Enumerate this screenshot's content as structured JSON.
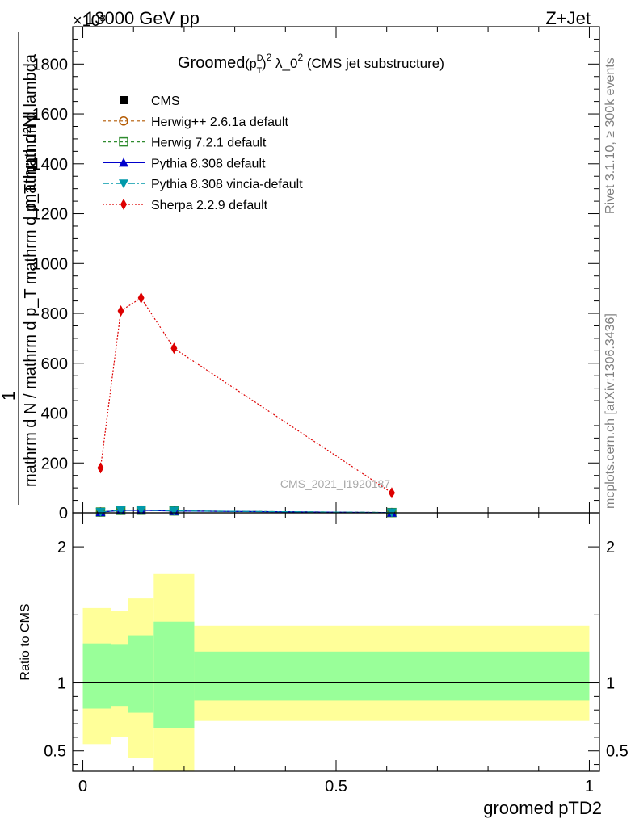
{
  "header": {
    "left": "13000 GeV pp",
    "right": "Z+Jet",
    "exponent": "×10³"
  },
  "side": {
    "rivet": "Rivet 3.1.10, ≥ 300k events",
    "mcplots": "mcplots.cern.ch [arXiv:1306.3436]"
  },
  "colors": {
    "cms": "#000000",
    "herwigpp": "#b35900",
    "herwig7": "#2e8b2e",
    "pythia": "#0000cc",
    "vincia": "#0099aa",
    "sherpa": "#dd0000",
    "band_inner": "#99ff99",
    "band_outer": "#ffff99"
  },
  "chart_data": [
    {
      "type": "line",
      "title": "Groomed (p_T^D)^2 λ_0^2 (CMS jet substructure)",
      "title_parts": {
        "pre": "Groomed",
        "p": "(p",
        "sup": "D",
        "sub": "T",
        "close": ")",
        "sq": "2",
        "mid": " λ_0",
        "sq2": "2",
        "post": " (CMS jet substructure)"
      },
      "ylabel_parts": {
        "one": "1",
        "den": "mathrm d N / mathrm d p_T mathrm d p_T mathrm d lambda",
        "num": "mathrm d²N"
      },
      "xlim": [
        -0.02,
        1.02
      ],
      "ylim": [
        0,
        1950
      ],
      "y_multiplier": "×10³",
      "yticks": [
        0,
        200,
        400,
        600,
        800,
        1000,
        1200,
        1400,
        1600,
        1800
      ],
      "ytick_labels": [
        "0",
        "200",
        "400",
        "600",
        "800",
        "1000",
        "1200",
        "1400",
        "1600",
        "1800"
      ],
      "legend_position": "top-left",
      "watermark": "CMS_2021_I1920187",
      "series": [
        {
          "name": "CMS",
          "key": "cms",
          "x": [
            0.035,
            0.075,
            0.115,
            0.18,
            0.61
          ],
          "y": [
            3.0,
            10.0,
            10.5,
            7.5,
            1.0
          ]
        },
        {
          "name": "Herwig++ 2.6.1a default",
          "key": "herwigpp",
          "x": [
            0.035,
            0.075,
            0.115,
            0.18,
            0.61
          ],
          "y": [
            3.2,
            10.3,
            10.8,
            7.8,
            1.1
          ]
        },
        {
          "name": "Herwig 7.2.1 default",
          "key": "herwig7",
          "x": [
            0.035,
            0.075,
            0.115,
            0.18,
            0.61
          ],
          "y": [
            3.1,
            10.1,
            10.6,
            7.6,
            1.05
          ]
        },
        {
          "name": "Pythia 8.308 default",
          "key": "pythia",
          "x": [
            0.035,
            0.075,
            0.115,
            0.18,
            0.61
          ],
          "y": [
            3.0,
            9.8,
            10.2,
            7.3,
            0.9
          ]
        },
        {
          "name": "Pythia 8.308 vincia-default",
          "key": "vincia",
          "x": [
            0.035,
            0.075,
            0.115,
            0.18,
            0.61
          ],
          "y": [
            3.3,
            10.5,
            11.0,
            7.9,
            1.2
          ]
        },
        {
          "name": "Sherpa 2.2.9 default",
          "key": "sherpa",
          "x": [
            0.035,
            0.075,
            0.115,
            0.18,
            0.61
          ],
          "y": [
            180,
            810,
            862,
            660,
            80
          ]
        }
      ]
    },
    {
      "type": "area",
      "ylabel": "Ratio to CMS",
      "xlabel": "groomed pTD2",
      "xlim": [
        -0.02,
        1.02
      ],
      "ylim": [
        0.35,
        2.25
      ],
      "yticks": [
        0.5,
        1,
        2
      ],
      "ytick_labels": [
        "0.5",
        "1",
        "2"
      ],
      "xticks": [
        0,
        0.5,
        1
      ],
      "xtick_labels": [
        "0",
        "0.5",
        "1"
      ],
      "reference_line": 1,
      "bins": [
        {
          "x0": 0.0,
          "x1": 0.055,
          "inner": [
            0.81,
            1.29
          ],
          "outer": [
            0.55,
            1.55
          ]
        },
        {
          "x0": 0.055,
          "x1": 0.09,
          "inner": [
            0.83,
            1.28
          ],
          "outer": [
            0.6,
            1.53
          ]
        },
        {
          "x0": 0.09,
          "x1": 0.14,
          "inner": [
            0.78,
            1.35
          ],
          "outer": [
            0.45,
            1.62
          ]
        },
        {
          "x0": 0.14,
          "x1": 0.22,
          "inner": [
            0.67,
            1.45
          ],
          "outer": [
            0.33,
            1.8
          ]
        },
        {
          "x0": 0.22,
          "x1": 1.0,
          "inner": [
            0.87,
            1.23
          ],
          "outer": [
            0.72,
            1.42
          ]
        }
      ]
    }
  ]
}
